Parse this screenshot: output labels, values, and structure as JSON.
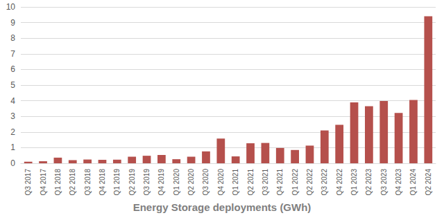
{
  "chart_data": {
    "type": "bar",
    "title": "Energy Storage deployments (GWh)",
    "categories": [
      "Q3 2017",
      "Q4 2017",
      "Q1 2018",
      "Q2 2018",
      "Q3 2018",
      "Q4 2018",
      "Q1 2019",
      "Q2 2019",
      "Q3 2019",
      "Q4 2019",
      "Q1 2020",
      "Q2 2020",
      "Q3 2020",
      "Q4 2020",
      "Q1 2021",
      "Q2 2021",
      "Q3 2021",
      "Q4 2021",
      "Q1 2022",
      "Q2 2022",
      "Q3 2022",
      "Q4 2022",
      "Q1 2023",
      "Q2 2023",
      "Q3 2023",
      "Q4 2023",
      "Q1 2024",
      "Q2 2024"
    ],
    "values": [
      0.1,
      0.13,
      0.36,
      0.2,
      0.24,
      0.22,
      0.23,
      0.42,
      0.48,
      0.53,
      0.26,
      0.42,
      0.76,
      1.58,
      0.44,
      1.28,
      1.3,
      0.98,
      0.85,
      1.13,
      2.1,
      2.46,
      3.89,
      3.65,
      3.98,
      3.22,
      4.05,
      9.4
    ],
    "color": "#b5504c",
    "ylim": [
      0,
      10
    ],
    "yticks": [
      0,
      1,
      2,
      3,
      4,
      5,
      6,
      7,
      8,
      9,
      10
    ],
    "grid": true
  }
}
